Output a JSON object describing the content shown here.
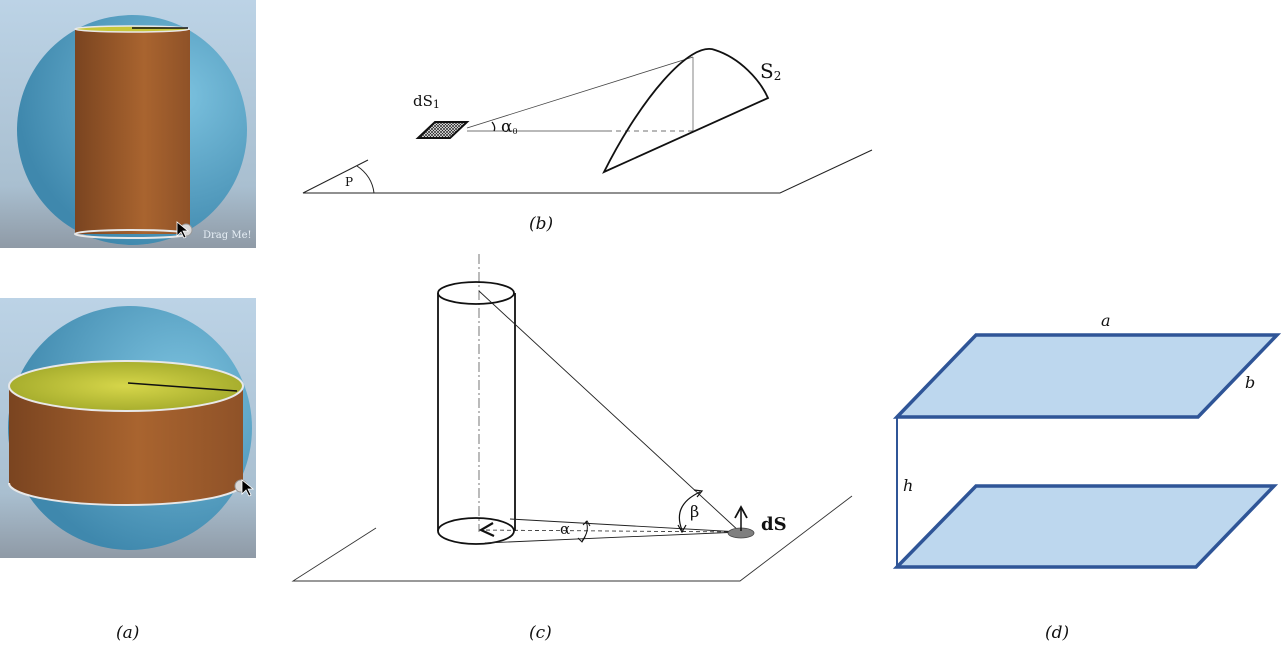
{
  "captions": {
    "a": "(a)",
    "b": "(b)",
    "c": "(c)",
    "d": "(d)"
  },
  "panel_a": {
    "top_overlay_text": "Drag Me!",
    "colors": {
      "sky": "#b4cde0",
      "sphere": "#5aa3c6",
      "cylinder_side": "#9a5a2b",
      "cylinder_top": "#c8c83a"
    }
  },
  "panel_b": {
    "label_element": "dS",
    "label_element_sub": "1",
    "label_angle": "α",
    "label_angle_sub": "0",
    "label_surface": "S",
    "label_surface_sub": "2",
    "label_plane": "P"
  },
  "panel_c": {
    "label_alpha": "α",
    "label_beta": "β",
    "label_element": "dS"
  },
  "panel_d": {
    "label_a": "a",
    "label_b": "b",
    "label_h": "h",
    "colors": {
      "fill": "#bdd7ee",
      "stroke": "#2f5597"
    }
  }
}
